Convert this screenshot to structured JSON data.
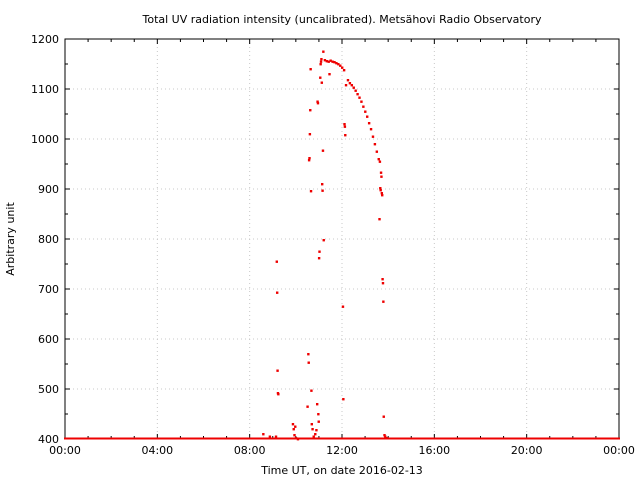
{
  "chart_data": {
    "type": "scatter",
    "title": "Total UV radiation intensity (uncalibrated). Metsähovi Radio Observatory",
    "xlabel": "Time UT, on date 2016-02-13",
    "ylabel": "Arbitrary unit",
    "xlim": [
      "00:00",
      "24:00"
    ],
    "ylim": [
      400,
      1200
    ],
    "xticks": [
      "00:00",
      "04:00",
      "08:00",
      "12:00",
      "16:00",
      "20:00",
      "00:00"
    ],
    "yticks": [
      400,
      500,
      600,
      700,
      800,
      900,
      1000,
      1100,
      1200
    ],
    "grid": true,
    "color": "#ee0000",
    "baseline": {
      "value": 400,
      "from": "00:00",
      "to": "24:00",
      "step_hours": 0.02
    },
    "series": [
      {
        "points": [
          [
            "08:35",
            410
          ],
          [
            "08:52",
            405
          ],
          [
            "09:08",
            405
          ],
          [
            "09:10",
            755
          ],
          [
            "09:11",
            693
          ],
          [
            "09:12",
            537
          ],
          [
            "09:13",
            492
          ],
          [
            "09:14",
            490
          ],
          [
            "09:52",
            430
          ],
          [
            "09:54",
            420
          ],
          [
            "09:56",
            408
          ],
          [
            "09:58",
            425
          ],
          [
            "10:00",
            402
          ],
          [
            "10:05",
            400
          ],
          [
            "10:30",
            465
          ],
          [
            "10:32",
            570
          ],
          [
            "10:33",
            553
          ],
          [
            "10:34",
            958
          ],
          [
            "10:35",
            962
          ],
          [
            "10:36",
            1010
          ],
          [
            "10:37",
            1058
          ],
          [
            "10:38",
            1140
          ],
          [
            "10:39",
            896
          ],
          [
            "10:40",
            497
          ],
          [
            "10:41",
            430
          ],
          [
            "10:43",
            420
          ],
          [
            "10:46",
            405
          ],
          [
            "10:50",
            410
          ],
          [
            "10:53",
            418
          ],
          [
            "10:55",
            470
          ],
          [
            "10:56",
            1075
          ],
          [
            "10:57",
            1072
          ],
          [
            "10:58",
            450
          ],
          [
            "10:59",
            435
          ],
          [
            "11:00",
            762
          ],
          [
            "11:01",
            775
          ],
          [
            "11:03",
            1123
          ],
          [
            "11:04",
            1150
          ],
          [
            "11:05",
            1155
          ],
          [
            "11:06",
            1160
          ],
          [
            "11:07",
            1113
          ],
          [
            "11:08",
            910
          ],
          [
            "11:09",
            897
          ],
          [
            "11:10",
            977
          ],
          [
            "11:11",
            1175
          ],
          [
            "11:12",
            798
          ],
          [
            "11:15",
            1158
          ],
          [
            "11:20",
            1156
          ],
          [
            "11:25",
            1155
          ],
          [
            "11:27",
            1130
          ],
          [
            "11:30",
            1157
          ],
          [
            "11:35",
            1155
          ],
          [
            "11:40",
            1154
          ],
          [
            "11:45",
            1152
          ],
          [
            "11:50",
            1150
          ],
          [
            "11:55",
            1147
          ],
          [
            "12:00",
            1143
          ],
          [
            "12:02",
            665
          ],
          [
            "12:03",
            480
          ],
          [
            "12:05",
            1138
          ],
          [
            "12:06",
            1030
          ],
          [
            "12:07",
            1025
          ],
          [
            "12:08",
            1008
          ],
          [
            "12:10",
            1108
          ],
          [
            "12:15",
            1118
          ],
          [
            "12:20",
            1112
          ],
          [
            "12:25",
            1108
          ],
          [
            "12:30",
            1103
          ],
          [
            "12:35",
            1097
          ],
          [
            "12:40",
            1090
          ],
          [
            "12:45",
            1083
          ],
          [
            "12:50",
            1075
          ],
          [
            "12:55",
            1065
          ],
          [
            "13:00",
            1055
          ],
          [
            "13:05",
            1045
          ],
          [
            "13:10",
            1032
          ],
          [
            "13:15",
            1020
          ],
          [
            "13:20",
            1005
          ],
          [
            "13:25",
            990
          ],
          [
            "13:30",
            975
          ],
          [
            "13:35",
            960
          ],
          [
            "13:37",
            840
          ],
          [
            "13:38",
            955
          ],
          [
            "13:39",
            902
          ],
          [
            "13:40",
            898
          ],
          [
            "13:41",
            933
          ],
          [
            "13:42",
            925
          ],
          [
            "13:43",
            892
          ],
          [
            "13:44",
            888
          ],
          [
            "13:45",
            720
          ],
          [
            "13:46",
            712
          ],
          [
            "13:47",
            675
          ],
          [
            "13:48",
            445
          ],
          [
            "13:50",
            408
          ],
          [
            "13:52",
            405
          ],
          [
            "13:55",
            402
          ]
        ]
      }
    ]
  }
}
